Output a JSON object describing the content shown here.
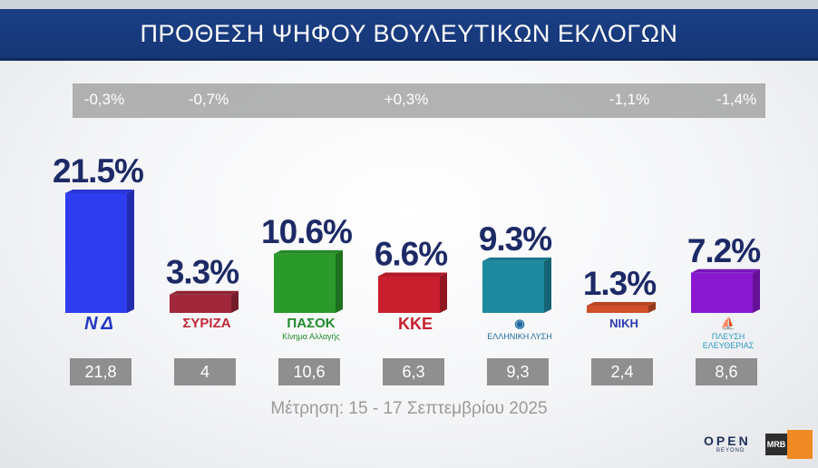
{
  "title": "ΠΡΟΘΕΣΗ ΨΗΦΟΥ ΒΟΥΛΕΥΤΙΚΩΝ ΕΚΛΟΓΩΝ",
  "changes": [
    "-0,3%",
    "-0,7%",
    "+0,3%",
    "-1,1%",
    "-1,4%"
  ],
  "period": "Μέτρηση: 15 - 17 Σεπτεμβρίου 2025",
  "logos": {
    "nd": "ΝΔ",
    "syriza": "ΣΥΡΙΖΑ",
    "pasok": "ΠΑΣΟΚ",
    "pasok_sub": "Κίνημα Αλλαγής",
    "kke": "ΚΚΕ",
    "el": "ΕΛΛΗΝΙΚΗ ΛΥΣΗ",
    "niki": "ΝΙΚΗ",
    "plefsi": "ΠΛΕΥΣΗ ΕΛΕΥΘΕΡΙΑΣ"
  },
  "brand": {
    "open": "OPEN",
    "open_sub": "BEYOND",
    "mrb": "MRB"
  },
  "colors": [
    "#2f3df0",
    "#a0283a",
    "#2a9a2a",
    "#c81e2e",
    "#1e8aa0",
    "#d0502a",
    "#8a18d0"
  ],
  "chart_data": {
    "type": "bar",
    "title": "ΠΡΟΘΕΣΗ ΨΗΦΟΥ ΒΟΥΛΕΥΤΙΚΩΝ ΕΚΛΟΓΩΝ",
    "categories": [
      "ΝΔ",
      "ΣΥΡΙΖΑ",
      "ΠΑΣΟΚ",
      "ΚΚΕ",
      "ΕΛΛΗΝΙΚΗ ΛΥΣΗ",
      "ΝΙΚΗ",
      "ΠΛΕΥΣΗ ΕΛΕΥΘΕΡΙΑΣ"
    ],
    "values": [
      21.5,
      3.3,
      10.6,
      6.6,
      9.3,
      1.3,
      7.2
    ],
    "value_labels": [
      "21.5%",
      "3.3%",
      "10.6%",
      "6.6%",
      "9.3%",
      "1.3%",
      "7.2%"
    ],
    "previous_labels": [
      "21,8",
      "4",
      "10,6",
      "6,3",
      "9,3",
      "2,4",
      "8,6"
    ],
    "ylim": [
      0,
      25
    ],
    "grid": false
  }
}
